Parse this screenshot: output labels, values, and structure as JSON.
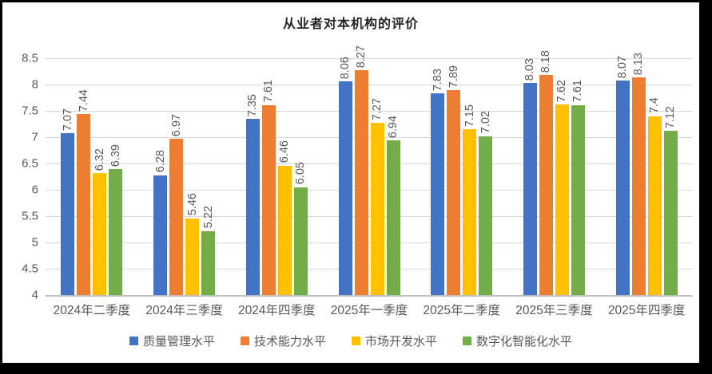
{
  "window": {
    "frame_color": "#000000",
    "background": "#FFFFFF"
  },
  "chart_data": {
    "type": "bar",
    "title": "从业者对本机构的评价",
    "categories": [
      "2024年二季度",
      "2024年三季度",
      "2024年四季度",
      "2025年一季度",
      "2025年二季度",
      "2025年三季度",
      "2025年四季度"
    ],
    "series": [
      {
        "name": "质量管理水平",
        "color": "#4472C4",
        "values": [
          7.07,
          6.28,
          7.35,
          8.06,
          7.83,
          8.03,
          8.07
        ]
      },
      {
        "name": "技术能力水平",
        "color": "#ED7D31",
        "values": [
          7.44,
          6.97,
          7.61,
          8.27,
          7.89,
          8.18,
          8.13
        ]
      },
      {
        "name": "市场开发水平",
        "color": "#FFC000",
        "values": [
          6.32,
          5.46,
          6.46,
          7.27,
          7.15,
          7.62,
          7.4
        ]
      },
      {
        "name": "数字化智能化水平",
        "color": "#70AD47",
        "values": [
          6.39,
          5.22,
          6.05,
          6.94,
          7.02,
          7.61,
          7.12
        ]
      }
    ],
    "xlabel": "",
    "ylabel": "",
    "ylim": [
      4,
      8.5
    ],
    "ytick_step": 0.5,
    "yticks": [
      "8.5",
      "8",
      "7.5",
      "7",
      "6.5",
      "6",
      "5.5",
      "5",
      "4.5",
      "4"
    ],
    "grid": true,
    "gridline_color": "#D9D9D9",
    "axis_line_color": "#BFBFBF",
    "label_color": "#595959",
    "legend_position": "bottom",
    "data_labels_rotation": "vertical"
  }
}
